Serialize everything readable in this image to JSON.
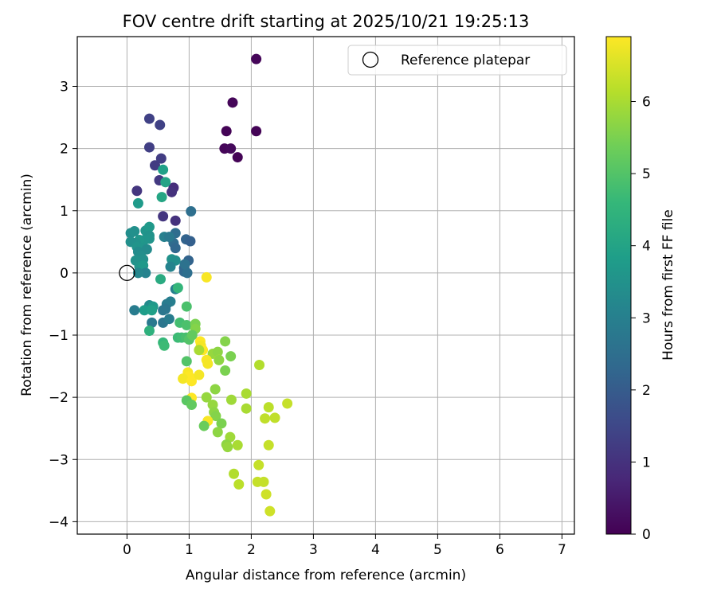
{
  "chart_data": {
    "type": "scatter",
    "title": "FOV centre drift starting at 2025/10/21 19:25:13",
    "xlabel": "Angular distance from reference (arcmin)",
    "ylabel": "Rotation from reference (arcmin)",
    "xlim": [
      -0.8,
      7.2
    ],
    "ylim": [
      -4.2,
      3.8
    ],
    "xticks": [
      0,
      1,
      2,
      3,
      4,
      5,
      6,
      7
    ],
    "yticks": [
      -4,
      -3,
      -2,
      -1,
      0,
      1,
      2,
      3
    ],
    "xtick_labels": [
      "0",
      "1",
      "2",
      "3",
      "4",
      "5",
      "6",
      "7"
    ],
    "ytick_labels": [
      "−4",
      "−3",
      "−2",
      "−1",
      "0",
      "1",
      "2",
      "3"
    ],
    "grid": true,
    "legend": {
      "label": "Reference platepar",
      "position": "top-right"
    },
    "reference_point": {
      "x": 0,
      "y": 0
    },
    "colorbar": {
      "label": "Hours from first FF file",
      "colormap": "viridis",
      "min": 0,
      "max": 6.9,
      "ticks": [
        0,
        1,
        2,
        3,
        4,
        5,
        6
      ],
      "tick_labels": [
        "0",
        "1",
        "2",
        "3",
        "4",
        "5",
        "6"
      ]
    },
    "colormap_stops": [
      "#440154",
      "#482878",
      "#3e4989",
      "#31688e",
      "#26828e",
      "#1f9e89",
      "#35b779",
      "#6ece58",
      "#b5de2b",
      "#fde725"
    ],
    "series": [
      {
        "name": "FOV centre drift",
        "points": [
          [
            2.08,
            3.44,
            0.1
          ],
          [
            1.7,
            2.74,
            0.1
          ],
          [
            1.6,
            2.28,
            0.05
          ],
          [
            2.08,
            2.28,
            0.05
          ],
          [
            1.57,
            2.0,
            0.1
          ],
          [
            1.67,
            2.0,
            0.15
          ],
          [
            1.78,
            1.86,
            0.05
          ],
          [
            0.36,
            2.48,
            1.35
          ],
          [
            0.53,
            2.38,
            1.35
          ],
          [
            0.36,
            2.02,
            1.3
          ],
          [
            0.55,
            1.84,
            1.25
          ],
          [
            0.45,
            1.73,
            1.2
          ],
          [
            0.16,
            1.32,
            1.1
          ],
          [
            0.52,
            1.49,
            1.15
          ],
          [
            0.75,
            1.37,
            0.9
          ],
          [
            0.72,
            1.3,
            1.0
          ],
          [
            0.58,
            0.91,
            1.1
          ],
          [
            0.78,
            0.84,
            1.0
          ],
          [
            0.58,
            1.66,
            3.9
          ],
          [
            0.62,
            1.46,
            4.0
          ],
          [
            0.56,
            1.22,
            4.05
          ],
          [
            0.18,
            1.12,
            3.75
          ],
          [
            1.03,
            0.99,
            2.5
          ],
          [
            0.78,
            0.64,
            2.45
          ],
          [
            0.75,
            0.48,
            2.45
          ],
          [
            0.78,
            0.4,
            2.3
          ],
          [
            0.95,
            0.54,
            2.2
          ],
          [
            1.02,
            0.51,
            2.1
          ],
          [
            0.6,
            0.58,
            3.0
          ],
          [
            0.68,
            0.58,
            2.8
          ],
          [
            0.99,
            0.2,
            2.2
          ],
          [
            0.92,
            0.08,
            2.0
          ],
          [
            0.92,
            0.02,
            2.3
          ],
          [
            0.97,
            0.0,
            2.5
          ],
          [
            0.93,
            0.14,
            2.6
          ],
          [
            0.06,
            0.64,
            3.4
          ],
          [
            0.12,
            0.67,
            3.45
          ],
          [
            0.3,
            0.68,
            3.6
          ],
          [
            0.36,
            0.74,
            3.7
          ],
          [
            0.36,
            0.6,
            3.5
          ],
          [
            0.36,
            0.55,
            3.55
          ],
          [
            0.28,
            0.53,
            3.6
          ],
          [
            0.2,
            0.53,
            3.65
          ],
          [
            0.14,
            0.48,
            3.5
          ],
          [
            0.06,
            0.5,
            3.45
          ],
          [
            0.16,
            0.42,
            3.55
          ],
          [
            0.24,
            0.4,
            3.6
          ],
          [
            0.32,
            0.38,
            3.3
          ],
          [
            0.18,
            0.34,
            3.35
          ],
          [
            0.22,
            0.28,
            3.4
          ],
          [
            0.26,
            0.22,
            3.45
          ],
          [
            0.14,
            0.2,
            3.5
          ],
          [
            0.2,
            0.1,
            3.6
          ],
          [
            0.26,
            0.12,
            3.7
          ],
          [
            0.3,
            0.0,
            3.1
          ],
          [
            0.18,
            0.0,
            3.2
          ],
          [
            0.72,
            0.22,
            3.5
          ],
          [
            0.78,
            0.2,
            3.4
          ],
          [
            0.7,
            0.1,
            3.1
          ],
          [
            0.54,
            -0.1,
            4.2
          ],
          [
            0.78,
            -0.26,
            3.0
          ],
          [
            0.82,
            -0.24,
            4.55
          ],
          [
            0.7,
            -0.46,
            2.95
          ],
          [
            0.64,
            -0.5,
            2.9
          ],
          [
            0.62,
            -0.58,
            2.7
          ],
          [
            0.58,
            -0.6,
            2.75
          ],
          [
            0.36,
            -0.52,
            3.3
          ],
          [
            0.42,
            -0.54,
            3.7
          ],
          [
            0.28,
            -0.6,
            3.8
          ],
          [
            0.4,
            -0.6,
            3.9
          ],
          [
            0.12,
            -0.6,
            2.9
          ],
          [
            0.4,
            -0.8,
            2.8
          ],
          [
            0.58,
            -0.8,
            2.7
          ],
          [
            0.68,
            -0.74,
            2.9
          ],
          [
            0.36,
            -0.93,
            4.4
          ],
          [
            1.28,
            -0.07,
            6.85
          ],
          [
            0.96,
            -0.54,
            4.9
          ],
          [
            0.85,
            -0.8,
            4.8
          ],
          [
            0.96,
            -0.84,
            4.9
          ],
          [
            1.1,
            -0.82,
            5.5
          ],
          [
            1.1,
            -0.9,
            5.6
          ],
          [
            0.82,
            -1.04,
            4.7
          ],
          [
            0.88,
            -1.04,
            4.75
          ],
          [
            0.95,
            -1.04,
            4.85
          ],
          [
            1.0,
            -1.07,
            5.0
          ],
          [
            1.05,
            -1.0,
            5.2
          ],
          [
            0.58,
            -1.12,
            4.6
          ],
          [
            0.6,
            -1.17,
            4.7
          ],
          [
            1.18,
            -1.1,
            6.9
          ],
          [
            1.19,
            -1.17,
            6.8
          ],
          [
            1.22,
            -1.24,
            6.9
          ],
          [
            1.16,
            -1.24,
            6.0
          ],
          [
            1.38,
            -1.3,
            5.8
          ],
          [
            1.46,
            -1.27,
            5.7
          ],
          [
            1.58,
            -1.1,
            5.6
          ],
          [
            1.67,
            -1.34,
            5.5
          ],
          [
            1.28,
            -1.4,
            6.85
          ],
          [
            1.3,
            -1.46,
            6.8
          ],
          [
            1.48,
            -1.4,
            6.9
          ],
          [
            1.48,
            -1.4,
            5.7
          ],
          [
            0.96,
            -1.42,
            5.0
          ],
          [
            1.58,
            -1.57,
            5.5
          ],
          [
            2.13,
            -1.48,
            6.1
          ],
          [
            0.98,
            -1.6,
            6.85
          ],
          [
            1.0,
            -1.66,
            6.9
          ],
          [
            0.9,
            -1.7,
            6.8
          ],
          [
            1.04,
            -1.74,
            6.9
          ],
          [
            1.16,
            -1.64,
            6.8
          ],
          [
            1.42,
            -1.87,
            5.7
          ],
          [
            1.04,
            -2.01,
            6.9
          ],
          [
            1.28,
            -2.0,
            5.8
          ],
          [
            1.68,
            -2.04,
            5.9
          ],
          [
            1.92,
            -1.94,
            6.0
          ],
          [
            0.96,
            -2.05,
            5.1
          ],
          [
            1.04,
            -2.12,
            5.2
          ],
          [
            1.38,
            -2.12,
            5.8
          ],
          [
            1.4,
            -2.24,
            5.7
          ],
          [
            1.43,
            -2.3,
            5.6
          ],
          [
            1.92,
            -2.18,
            6.0
          ],
          [
            2.28,
            -2.16,
            6.2
          ],
          [
            2.58,
            -2.1,
            6.3
          ],
          [
            2.22,
            -2.34,
            6.25
          ],
          [
            2.38,
            -2.33,
            6.25
          ],
          [
            1.3,
            -2.38,
            6.85
          ],
          [
            1.52,
            -2.42,
            5.5
          ],
          [
            1.24,
            -2.46,
            5.3
          ],
          [
            1.46,
            -2.56,
            5.7
          ],
          [
            1.66,
            -2.64,
            5.9
          ],
          [
            1.6,
            -2.76,
            5.7
          ],
          [
            1.62,
            -2.8,
            5.8
          ],
          [
            1.78,
            -2.77,
            6.0
          ],
          [
            2.28,
            -2.77,
            6.3
          ],
          [
            2.12,
            -3.09,
            6.3
          ],
          [
            1.72,
            -3.23,
            6.1
          ],
          [
            1.8,
            -3.4,
            6.2
          ],
          [
            2.1,
            -3.36,
            6.3
          ],
          [
            2.2,
            -3.36,
            6.3
          ],
          [
            2.24,
            -3.56,
            6.4
          ],
          [
            2.3,
            -3.83,
            6.4
          ]
        ]
      }
    ]
  }
}
